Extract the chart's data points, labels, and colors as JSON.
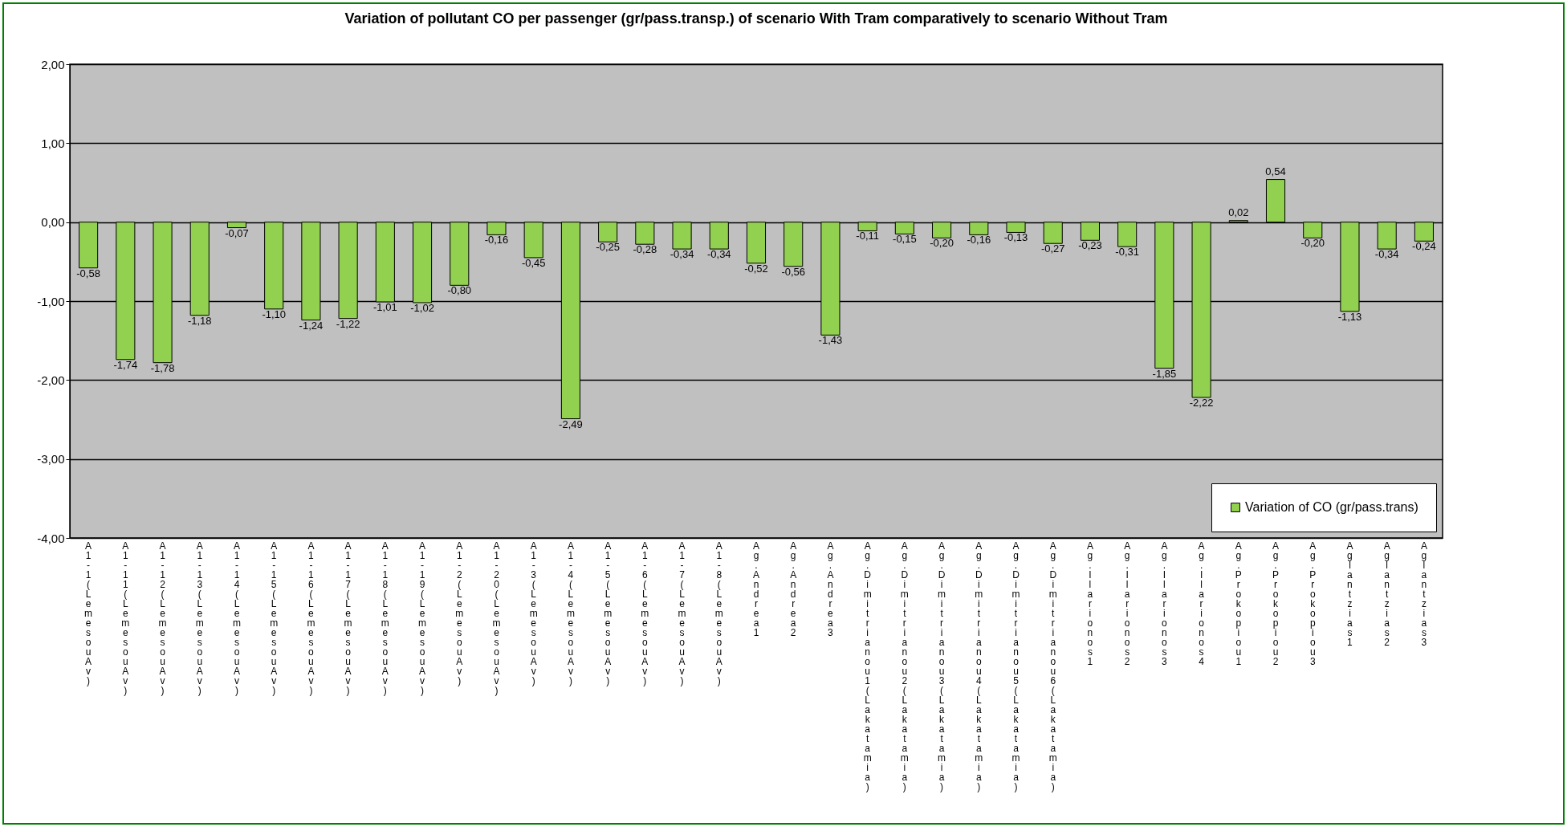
{
  "chart_data": {
    "type": "bar",
    "title": "Variation of pollutant CO per passenger (gr/pass.transp.) of scenario With Tram comparatively to scenario  Without Tram",
    "categories": [
      "A1-1 (Lemesou Av)",
      "A1-11 (Lemesou Av)",
      "A1-12 (Lemesou Av)",
      "A1-13 (Lemesou Av)",
      "A1-14 (Lemesou Av)",
      "A1-15 (Lemesou Av)",
      "A1-16 (Lemesou Av)",
      "A1-17 (Lemesou Av)",
      "A1-18 (Lemesou Av)",
      "A1-19 (Lemesou Av)",
      "A1-2 (Lemesou Av)",
      "A1-20 (Lemesou Av)",
      "A1-3 (Lemesou Av)",
      "A1-4 (Lemesou Av)",
      "A1-5 (Lemesou Av)",
      "A1-6 (Lemesou Av)",
      "A1-7 (Lemesou Av)",
      "A1-8 (Lemesou Av)",
      "Ag.Andrea1",
      "Ag.Andrea2",
      "Ag.Andrea3",
      "Ag.Dimitrianou1 (Lakatamia)",
      "Ag.Dimitrianou2 (Lakatamia)",
      "Ag.Dimitrianou3 (Lakatamia)",
      "Ag.Dimitrianou4 (Lakatamia)",
      "Ag.Dimitrianou5 (Lakatamia)",
      "Ag.Dimitrianou6 (Lakatamia)",
      "Ag.Ilarionos1",
      "Ag.Ilarionos2",
      "Ag.Ilarionos3",
      "Ag.Ilarionos4",
      "Ag.Prokopiou1",
      "Ag.Prokopiou2",
      "Ag.Prokopiou3",
      "Aglantzias1",
      "Aglantzias2",
      "Aglantzias3"
    ],
    "series": [
      {
        "name": "Variation of CO (gr/pass.trans)",
        "color": "#92d050",
        "values": [
          -0.58,
          -1.74,
          -1.78,
          -1.18,
          -0.07,
          -1.1,
          -1.24,
          -1.22,
          -1.01,
          -1.02,
          -0.8,
          -0.16,
          -0.45,
          -2.49,
          -0.25,
          -0.28,
          -0.34,
          -0.34,
          -0.52,
          -0.56,
          -1.43,
          -0.11,
          -0.15,
          -0.2,
          -0.16,
          -0.13,
          -0.27,
          -0.23,
          -0.31,
          -1.85,
          -2.22,
          0.02,
          0.54,
          -0.2,
          -1.13,
          -0.34,
          -0.24
        ],
        "value_labels": [
          "-0,58",
          "-1,74",
          "-1,78",
          "-1,18",
          "-0,07",
          "-1,10",
          "-1,24",
          "-1,22",
          "-1,01",
          "-1,02",
          "-0,80",
          "-0,16",
          "-0,45",
          "-2,49",
          "-0,25",
          "-0,28",
          "-0,34",
          "-0,34",
          "-0,52",
          "-0,56",
          "-1,43",
          "-0,11",
          "-0,15",
          "-0,20",
          "-0,16",
          "-0,13",
          "-0,27",
          "-0,23",
          "-0,31",
          "-1,85",
          "-2,22",
          "0,02",
          "0,54",
          "-0,20",
          "-1,13",
          "-0,34",
          "-0,24"
        ]
      }
    ],
    "ylim": [
      -4,
      2
    ],
    "yticks": [
      {
        "value": -4,
        "label": "-4,00"
      },
      {
        "value": -3,
        "label": "-3,00"
      },
      {
        "value": -2,
        "label": "-2,00"
      },
      {
        "value": -1,
        "label": "-1,00"
      },
      {
        "value": 0,
        "label": "0,00"
      },
      {
        "value": 1,
        "label": "1,00"
      },
      {
        "value": 2,
        "label": "2,00"
      }
    ],
    "grid": "y",
    "legend": "bottom right"
  }
}
